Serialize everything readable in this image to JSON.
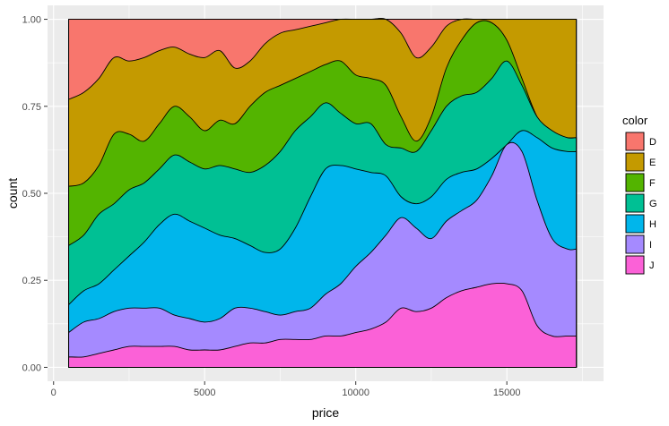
{
  "chart_data": {
    "type": "area",
    "subtype": "stacked-density-fill",
    "xlabel": "price",
    "ylabel": "count",
    "xlim": [
      -200,
      18200
    ],
    "ylim": [
      -0.04,
      1.04
    ],
    "x_ticks": [
      0,
      5000,
      10000,
      15000
    ],
    "x_tick_labels": [
      "0",
      "5000",
      "10000",
      "15000"
    ],
    "y_ticks": [
      0.0,
      0.25,
      0.5,
      0.75,
      1.0
    ],
    "y_tick_labels": [
      "0.00",
      "0.25",
      "0.50",
      "0.75",
      "1.00"
    ],
    "grid": true,
    "legend": {
      "title": "color",
      "position": "right"
    },
    "x": [
      500,
      1000,
      1500,
      2000,
      2500,
      3000,
      3500,
      4000,
      4500,
      5000,
      5500,
      6000,
      6500,
      7000,
      7500,
      8000,
      8500,
      9000,
      9500,
      10000,
      10500,
      11000,
      11500,
      12000,
      12500,
      13000,
      13500,
      14000,
      14500,
      15000,
      15500,
      16000,
      16500,
      17000,
      17300
    ],
    "stack_order": [
      "J",
      "I",
      "H",
      "G",
      "F",
      "E",
      "D"
    ],
    "series": [
      {
        "name": "D",
        "color": "#F8766D",
        "upper": [
          1.0,
          1.0,
          1.0,
          1.0,
          1.0,
          1.0,
          1.0,
          1.0,
          1.0,
          1.0,
          1.0,
          1.0,
          1.0,
          1.0,
          1.0,
          1.0,
          1.0,
          1.0,
          1.0,
          1.0,
          1.0,
          1.0,
          1.0,
          1.0,
          1.0,
          1.0,
          1.0,
          1.0,
          1.0,
          1.0,
          1.0,
          1.0,
          1.0,
          1.0,
          1.0
        ]
      },
      {
        "name": "E",
        "color": "#C49A00",
        "upper": [
          0.77,
          0.79,
          0.83,
          0.89,
          0.88,
          0.89,
          0.91,
          0.92,
          0.9,
          0.89,
          0.91,
          0.86,
          0.88,
          0.93,
          0.96,
          0.97,
          0.98,
          0.99,
          1.0,
          1.0,
          1.0,
          1.0,
          0.96,
          0.89,
          0.92,
          0.98,
          1.0,
          1.0,
          1.0,
          1.0,
          1.0,
          1.0,
          1.0,
          1.0,
          1.0
        ]
      },
      {
        "name": "F",
        "color": "#53B400",
        "upper": [
          0.52,
          0.53,
          0.58,
          0.67,
          0.67,
          0.65,
          0.7,
          0.75,
          0.72,
          0.68,
          0.71,
          0.7,
          0.75,
          0.79,
          0.81,
          0.83,
          0.85,
          0.87,
          0.88,
          0.84,
          0.83,
          0.81,
          0.72,
          0.65,
          0.72,
          0.86,
          0.94,
          0.99,
          0.99,
          0.94,
          0.83,
          0.72,
          0.67,
          0.66,
          0.66
        ]
      },
      {
        "name": "G",
        "color": "#00C094",
        "upper": [
          0.35,
          0.38,
          0.44,
          0.47,
          0.51,
          0.53,
          0.57,
          0.61,
          0.59,
          0.57,
          0.58,
          0.57,
          0.56,
          0.58,
          0.62,
          0.68,
          0.72,
          0.76,
          0.73,
          0.7,
          0.7,
          0.64,
          0.63,
          0.62,
          0.68,
          0.75,
          0.78,
          0.79,
          0.83,
          0.88,
          0.81,
          0.72,
          0.68,
          0.66,
          0.66
        ]
      },
      {
        "name": "H",
        "color": "#00B6EB",
        "upper": [
          0.18,
          0.22,
          0.24,
          0.28,
          0.32,
          0.36,
          0.41,
          0.44,
          0.42,
          0.4,
          0.38,
          0.37,
          0.35,
          0.33,
          0.34,
          0.4,
          0.49,
          0.57,
          0.58,
          0.57,
          0.56,
          0.55,
          0.49,
          0.47,
          0.49,
          0.54,
          0.56,
          0.57,
          0.6,
          0.64,
          0.68,
          0.66,
          0.63,
          0.62,
          0.62
        ]
      },
      {
        "name": "I",
        "color": "#A58AFF",
        "upper": [
          0.1,
          0.13,
          0.14,
          0.16,
          0.17,
          0.17,
          0.17,
          0.15,
          0.14,
          0.13,
          0.14,
          0.17,
          0.17,
          0.16,
          0.15,
          0.16,
          0.17,
          0.21,
          0.24,
          0.29,
          0.33,
          0.38,
          0.43,
          0.4,
          0.37,
          0.42,
          0.45,
          0.48,
          0.55,
          0.64,
          0.62,
          0.48,
          0.37,
          0.34,
          0.34
        ]
      },
      {
        "name": "J",
        "color": "#FB61D7",
        "upper": [
          0.03,
          0.03,
          0.04,
          0.05,
          0.06,
          0.06,
          0.06,
          0.06,
          0.05,
          0.05,
          0.05,
          0.06,
          0.07,
          0.07,
          0.08,
          0.08,
          0.08,
          0.09,
          0.09,
          0.1,
          0.11,
          0.13,
          0.17,
          0.16,
          0.17,
          0.2,
          0.22,
          0.23,
          0.24,
          0.24,
          0.22,
          0.12,
          0.09,
          0.09,
          0.09
        ]
      }
    ]
  }
}
